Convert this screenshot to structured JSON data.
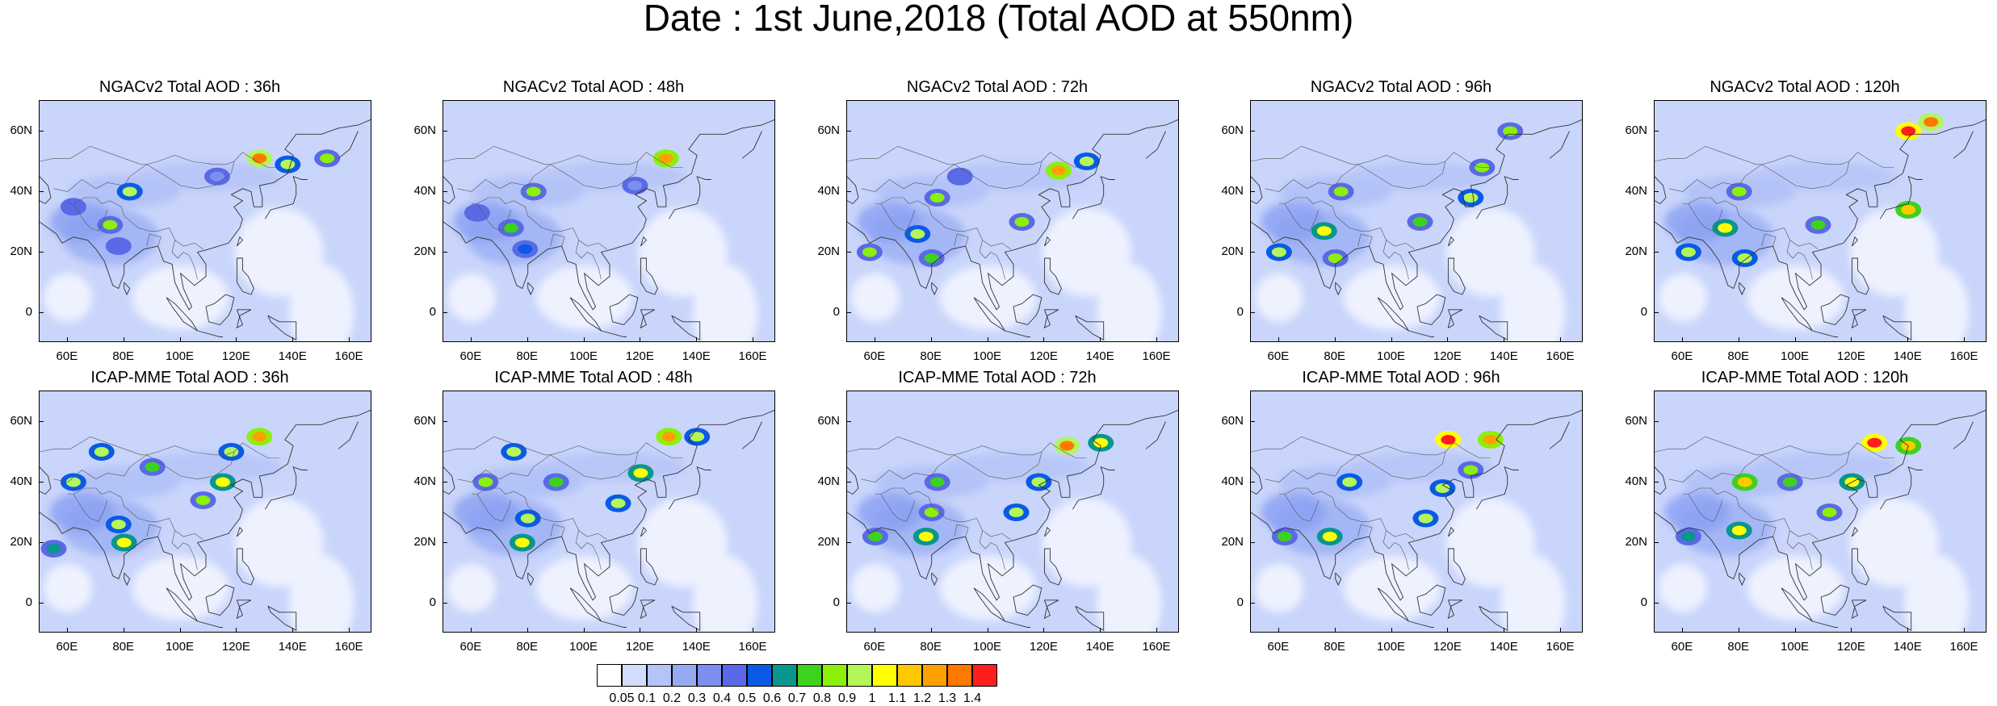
{
  "title": "Date : 1st June,2018 (Total AOD at 550nm)",
  "axes": {
    "lat_labels": [
      "60N",
      "40N",
      "20N",
      "0"
    ],
    "lat_values": [
      60,
      40,
      20,
      0
    ],
    "lon_labels": [
      "60E",
      "80E",
      "100E",
      "120E",
      "140E",
      "160E"
    ],
    "lon_values": [
      60,
      80,
      100,
      120,
      140,
      160
    ],
    "lon_range": [
      50,
      168
    ],
    "lat_range": [
      -10,
      70
    ]
  },
  "panels": [
    {
      "title": "NGACv2 Total AOD : 36h",
      "model": "NGACv2",
      "lead": "36h"
    },
    {
      "title": "NGACv2 Total AOD : 48h",
      "model": "NGACv2",
      "lead": "48h"
    },
    {
      "title": "NGACv2 Total AOD : 72h",
      "model": "NGACv2",
      "lead": "72h"
    },
    {
      "title": "NGACv2 Total AOD : 96h",
      "model": "NGACv2",
      "lead": "96h"
    },
    {
      "title": "NGACv2 Total AOD : 120h",
      "model": "NGACv2",
      "lead": "120h"
    },
    {
      "title": "ICAP-MME Total AOD : 36h",
      "model": "ICAP-MME",
      "lead": "36h"
    },
    {
      "title": "ICAP-MME Total AOD : 48h",
      "model": "ICAP-MME",
      "lead": "48h"
    },
    {
      "title": "ICAP-MME Total AOD : 72h",
      "model": "ICAP-MME",
      "lead": "72h"
    },
    {
      "title": "ICAP-MME Total AOD : 96h",
      "model": "ICAP-MME",
      "lead": "96h"
    },
    {
      "title": "ICAP-MME Total AOD : 120h",
      "model": "ICAP-MME",
      "lead": "120h"
    }
  ],
  "colorbar": {
    "labels": [
      "0.05",
      "0.1",
      "0.2",
      "0.3",
      "0.4",
      "0.5",
      "0.6",
      "0.7",
      "0.8",
      "0.9",
      "1",
      "1.1",
      "1.2",
      "1.3",
      "1.4"
    ],
    "colors": [
      "#ffffff",
      "#d2dcfc",
      "#b4c3f8",
      "#96aaf4",
      "#7b8ff0",
      "#5a6ae6",
      "#0a5ae6",
      "#09968c",
      "#3cd21e",
      "#8cf00a",
      "#b4f55a",
      "#ffff00",
      "#ffc800",
      "#ffa000",
      "#ff7800",
      "#ff1e1e"
    ]
  },
  "hotspots": [
    [
      {
        "lon": 128,
        "lat": 51,
        "value": 1.3
      },
      {
        "lon": 138,
        "lat": 49,
        "value": 0.9
      },
      {
        "lon": 82,
        "lat": 40,
        "value": 0.9
      },
      {
        "lon": 75,
        "lat": 29,
        "value": 0.8
      },
      {
        "lon": 152,
        "lat": 51,
        "value": 0.8
      },
      {
        "lon": 62,
        "lat": 35,
        "value": 0.45
      },
      {
        "lon": 78,
        "lat": 22,
        "value": 0.45
      },
      {
        "lon": 113,
        "lat": 45,
        "value": 0.35
      }
    ],
    [
      {
        "lon": 129,
        "lat": 51,
        "value": 1.2
      },
      {
        "lon": 82,
        "lat": 40,
        "value": 0.8
      },
      {
        "lon": 74,
        "lat": 28,
        "value": 0.7
      },
      {
        "lon": 79,
        "lat": 21,
        "value": 0.5
      },
      {
        "lon": 62,
        "lat": 33,
        "value": 0.45
      },
      {
        "lon": 118,
        "lat": 42,
        "value": 0.35
      }
    ],
    [
      {
        "lon": 125,
        "lat": 47,
        "value": 1.2
      },
      {
        "lon": 135,
        "lat": 50,
        "value": 0.9
      },
      {
        "lon": 75,
        "lat": 26,
        "value": 0.9
      },
      {
        "lon": 58,
        "lat": 20,
        "value": 0.8
      },
      {
        "lon": 82,
        "lat": 38,
        "value": 0.8
      },
      {
        "lon": 80,
        "lat": 18,
        "value": 0.7
      },
      {
        "lon": 90,
        "lat": 45,
        "value": 0.45
      },
      {
        "lon": 112,
        "lat": 30,
        "value": 0.8
      }
    ],
    [
      {
        "lon": 60,
        "lat": 20,
        "value": 0.9
      },
      {
        "lon": 76,
        "lat": 27,
        "value": 1.0
      },
      {
        "lon": 80,
        "lat": 18,
        "value": 0.8
      },
      {
        "lon": 82,
        "lat": 40,
        "value": 0.8
      },
      {
        "lon": 128,
        "lat": 38,
        "value": 0.9
      },
      {
        "lon": 132,
        "lat": 48,
        "value": 0.8
      },
      {
        "lon": 142,
        "lat": 60,
        "value": 0.8
      },
      {
        "lon": 110,
        "lat": 30,
        "value": 0.7
      }
    ],
    [
      {
        "lon": 140,
        "lat": 60,
        "value": 1.4
      },
      {
        "lon": 148,
        "lat": 63,
        "value": 1.3
      },
      {
        "lon": 140,
        "lat": 34,
        "value": 1.1
      },
      {
        "lon": 75,
        "lat": 28,
        "value": 1.0
      },
      {
        "lon": 62,
        "lat": 20,
        "value": 0.9
      },
      {
        "lon": 82,
        "lat": 18,
        "value": 0.9
      },
      {
        "lon": 80,
        "lat": 40,
        "value": 0.8
      },
      {
        "lon": 108,
        "lat": 29,
        "value": 0.7
      }
    ],
    [
      {
        "lon": 80,
        "lat": 20,
        "value": 1.0
      },
      {
        "lon": 78,
        "lat": 26,
        "value": 0.9
      },
      {
        "lon": 115,
        "lat": 40,
        "value": 1.0
      },
      {
        "lon": 118,
        "lat": 50,
        "value": 0.9
      },
      {
        "lon": 128,
        "lat": 55,
        "value": 1.2
      },
      {
        "lon": 72,
        "lat": 50,
        "value": 0.9
      },
      {
        "lon": 62,
        "lat": 40,
        "value": 0.9
      },
      {
        "lon": 90,
        "lat": 45,
        "value": 0.7
      },
      {
        "lon": 108,
        "lat": 34,
        "value": 0.8
      },
      {
        "lon": 55,
        "lat": 18,
        "value": 0.6
      }
    ],
    [
      {
        "lon": 78,
        "lat": 20,
        "value": 1.0
      },
      {
        "lon": 80,
        "lat": 28,
        "value": 0.9
      },
      {
        "lon": 75,
        "lat": 50,
        "value": 0.9
      },
      {
        "lon": 65,
        "lat": 40,
        "value": 0.8
      },
      {
        "lon": 112,
        "lat": 33,
        "value": 0.9
      },
      {
        "lon": 120,
        "lat": 43,
        "value": 1.0
      },
      {
        "lon": 130,
        "lat": 55,
        "value": 1.2
      },
      {
        "lon": 140,
        "lat": 55,
        "value": 0.9
      },
      {
        "lon": 90,
        "lat": 40,
        "value": 0.7
      }
    ],
    [
      {
        "lon": 78,
        "lat": 22,
        "value": 1.0
      },
      {
        "lon": 80,
        "lat": 30,
        "value": 0.8
      },
      {
        "lon": 60,
        "lat": 22,
        "value": 0.7
      },
      {
        "lon": 110,
        "lat": 30,
        "value": 0.9
      },
      {
        "lon": 118,
        "lat": 40,
        "value": 0.9
      },
      {
        "lon": 128,
        "lat": 52,
        "value": 1.3
      },
      {
        "lon": 140,
        "lat": 53,
        "value": 1.0
      },
      {
        "lon": 82,
        "lat": 40,
        "value": 0.7
      }
    ],
    [
      {
        "lon": 78,
        "lat": 22,
        "value": 1.0
      },
      {
        "lon": 62,
        "lat": 22,
        "value": 0.7
      },
      {
        "lon": 120,
        "lat": 54,
        "value": 1.4
      },
      {
        "lon": 135,
        "lat": 54,
        "value": 1.2
      },
      {
        "lon": 118,
        "lat": 38,
        "value": 0.9
      },
      {
        "lon": 112,
        "lat": 28,
        "value": 0.9
      },
      {
        "lon": 85,
        "lat": 40,
        "value": 0.9
      },
      {
        "lon": 128,
        "lat": 44,
        "value": 0.8
      }
    ],
    [
      {
        "lon": 80,
        "lat": 24,
        "value": 1.0
      },
      {
        "lon": 82,
        "lat": 40,
        "value": 1.1
      },
      {
        "lon": 128,
        "lat": 53,
        "value": 1.4
      },
      {
        "lon": 140,
        "lat": 52,
        "value": 1.1
      },
      {
        "lon": 120,
        "lat": 40,
        "value": 1.0
      },
      {
        "lon": 112,
        "lat": 30,
        "value": 0.8
      },
      {
        "lon": 98,
        "lat": 40,
        "value": 0.7
      },
      {
        "lon": 62,
        "lat": 22,
        "value": 0.6
      }
    ]
  ]
}
